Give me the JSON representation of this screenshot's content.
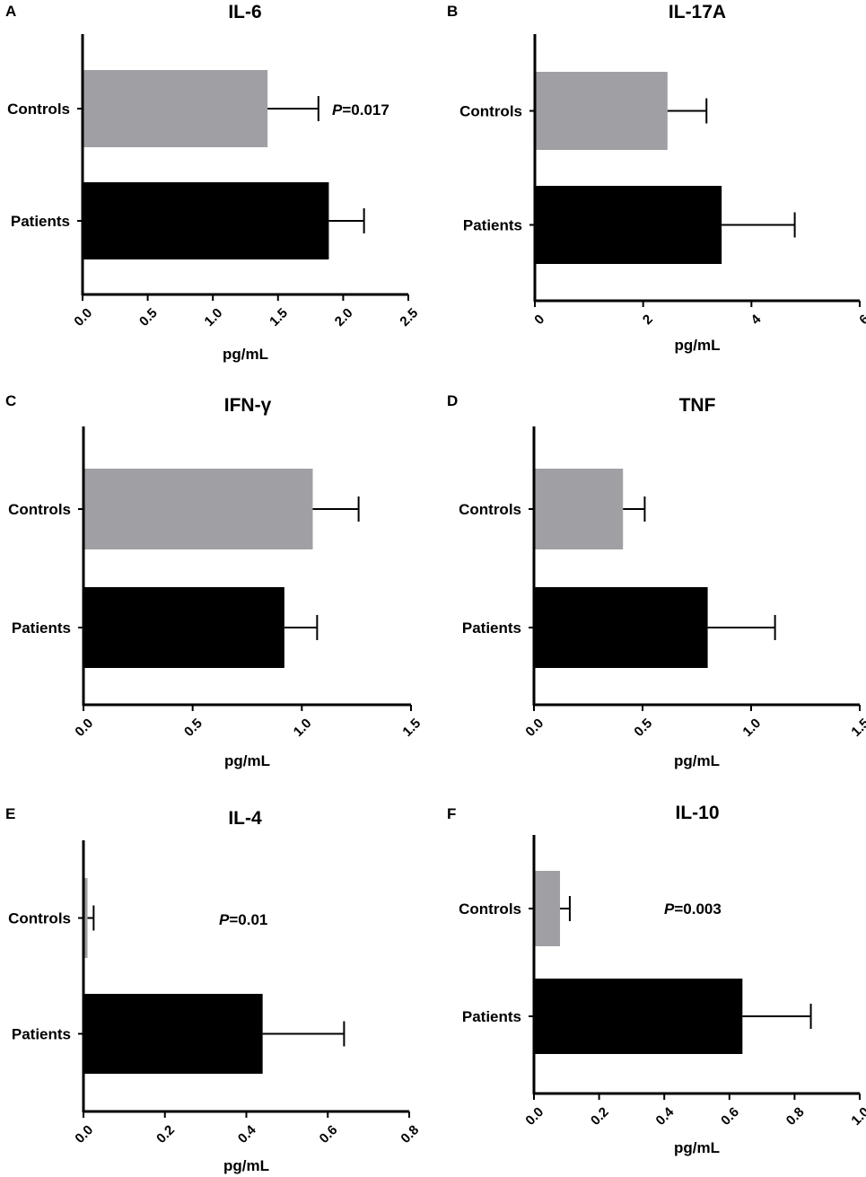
{
  "chart_data": [
    {
      "panel": "A",
      "type": "bar",
      "orientation": "horizontal",
      "title": "IL-6",
      "categories": [
        "Controls",
        "Patients"
      ],
      "values": [
        1.42,
        1.89
      ],
      "errors": [
        0.39,
        0.27
      ],
      "colors": [
        "#a0a0a4",
        "#000000"
      ],
      "xlabel": "pg/mL",
      "xlim": [
        0,
        2.5
      ],
      "xticks": [
        "0.0",
        "0.5",
        "1.0",
        "1.5",
        "2.0",
        "2.5"
      ],
      "annotation": {
        "p_label": "P",
        "p_value": "=0.017"
      }
    },
    {
      "panel": "B",
      "type": "bar",
      "orientation": "horizontal",
      "title": "IL-17A",
      "categories": [
        "Controls",
        "Patients"
      ],
      "values": [
        2.45,
        3.45
      ],
      "errors": [
        0.72,
        1.35
      ],
      "colors": [
        "#a0a0a4",
        "#000000"
      ],
      "xlabel": "pg/mL",
      "xlim": [
        0,
        6
      ],
      "xticks": [
        "0",
        "2",
        "4",
        "6"
      ],
      "annotation": null
    },
    {
      "panel": "C",
      "type": "bar",
      "orientation": "horizontal",
      "title": "IFN-γ",
      "categories": [
        "Controls",
        "Patients"
      ],
      "values": [
        1.05,
        0.92
      ],
      "errors": [
        0.21,
        0.15
      ],
      "colors": [
        "#a0a0a4",
        "#000000"
      ],
      "xlabel": "pg/mL",
      "xlim": [
        0,
        1.5
      ],
      "xticks": [
        "0.0",
        "0.5",
        "1.0",
        "1.5"
      ],
      "annotation": null
    },
    {
      "panel": "D",
      "type": "bar",
      "orientation": "horizontal",
      "title": "TNF",
      "categories": [
        "Controls",
        "Patients"
      ],
      "values": [
        0.41,
        0.8
      ],
      "errors": [
        0.1,
        0.31
      ],
      "colors": [
        "#a0a0a4",
        "#000000"
      ],
      "xlabel": "pg/mL",
      "xlim": [
        0,
        1.5
      ],
      "xticks": [
        "0.0",
        "0.5",
        "1.0",
        "1.5"
      ],
      "annotation": null
    },
    {
      "panel": "E",
      "type": "bar",
      "orientation": "horizontal",
      "title": "IL-4",
      "categories": [
        "Controls",
        "Patients"
      ],
      "values": [
        0.01,
        0.44
      ],
      "errors": [
        0.015,
        0.2
      ],
      "colors": [
        "#a0a0a4",
        "#000000"
      ],
      "xlabel": "pg/mL",
      "xlim": [
        0,
        0.8
      ],
      "xticks": [
        "0.0",
        "0.2",
        "0.4",
        "0.6",
        "0.8"
      ],
      "annotation": {
        "p_label": "P",
        "p_value": "=0.01"
      }
    },
    {
      "panel": "F",
      "type": "bar",
      "orientation": "horizontal",
      "title": "IL-10",
      "categories": [
        "Controls",
        "Patients"
      ],
      "values": [
        0.08,
        0.64
      ],
      "errors": [
        0.03,
        0.21
      ],
      "colors": [
        "#a0a0a4",
        "#000000"
      ],
      "xlabel": "pg/mL",
      "xlim": [
        0,
        1.0
      ],
      "xticks": [
        "0.0",
        "0.2",
        "0.4",
        "0.6",
        "0.8",
        "1.0"
      ],
      "annotation": {
        "p_label": "P",
        "p_value": "=0.003"
      }
    }
  ]
}
